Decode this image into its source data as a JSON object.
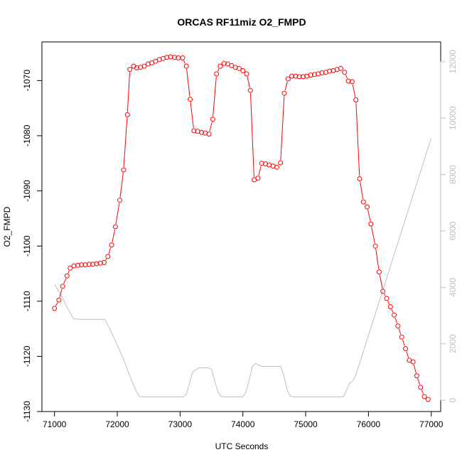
{
  "chart_data": {
    "type": "line",
    "title": "ORCAS RF11miz O2_FMPD",
    "xlabel": "UTC Seconds",
    "ylabel": "O2_FMPD",
    "ylabel_right": "",
    "xlim": [
      70800,
      77150
    ],
    "ylim": [
      -1130,
      -1063
    ],
    "ylim_right": [
      -400,
      12700
    ],
    "x_ticks": [
      71000,
      72000,
      73000,
      74000,
      75000,
      76000,
      77000
    ],
    "y_ticks": [
      -1130,
      -1120,
      -1110,
      -1100,
      -1090,
      -1080,
      -1070
    ],
    "y_ticks_right": [
      0,
      2000,
      4000,
      6000,
      8000,
      10000,
      12000
    ],
    "colors": {
      "primary": "#ff0000",
      "secondary": "#bfbfbf",
      "axes": "#000000"
    },
    "series": [
      {
        "axis": "left",
        "style": "points-line",
        "x": [
          71000,
          71070,
          71130,
          71200,
          71250,
          71310,
          71370,
          71430,
          71490,
          71550,
          71610,
          71670,
          71730,
          71790,
          71850,
          71910,
          71970,
          72040,
          72100,
          72160,
          72200,
          72260,
          72310,
          72370,
          72430,
          72490,
          72550,
          72610,
          72670,
          72730,
          72790,
          72850,
          72910,
          72970,
          73040,
          73100,
          73160,
          73220,
          73280,
          73340,
          73400,
          73460,
          73520,
          73580,
          73640,
          73700,
          73760,
          73820,
          73880,
          73940,
          74000,
          74060,
          74120,
          74180,
          74240,
          74300,
          74360,
          74420,
          74480,
          74540,
          74600,
          74660,
          74720,
          74780,
          74840,
          74900,
          74960,
          75020,
          75080,
          75140,
          75200,
          75260,
          75320,
          75380,
          75440,
          75500,
          75560,
          75620,
          75680,
          75740,
          75800,
          75860,
          75920,
          75980,
          76040,
          76110,
          76170,
          76230,
          76290,
          76350,
          76410,
          76470,
          76530,
          76590,
          76650,
          76710,
          76770,
          76830,
          76890,
          76950
        ],
        "y": [
          -1111.3,
          -1109.8,
          -1107.3,
          -1105.4,
          -1104.0,
          -1103.6,
          -1103.5,
          -1103.4,
          -1103.4,
          -1103.3,
          -1103.3,
          -1103.2,
          -1103.1,
          -1103.0,
          -1101.9,
          -1099.8,
          -1096.5,
          -1091.7,
          -1086.2,
          -1076.2,
          -1068.0,
          -1067.4,
          -1067.7,
          -1067.6,
          -1067.4,
          -1067.0,
          -1066.8,
          -1066.5,
          -1066.2,
          -1066.0,
          -1065.8,
          -1065.7,
          -1065.8,
          -1065.9,
          -1065.9,
          -1067.4,
          -1073.4,
          -1079.1,
          -1079.2,
          -1079.4,
          -1079.5,
          -1079.7,
          -1077.0,
          -1068.8,
          -1067.4,
          -1066.9,
          -1067.0,
          -1067.3,
          -1067.6,
          -1067.8,
          -1068.2,
          -1068.8,
          -1071.8,
          -1088.0,
          -1087.7,
          -1085.0,
          -1085.1,
          -1085.3,
          -1085.5,
          -1085.7,
          -1084.9,
          -1072.3,
          -1069.7,
          -1069.2,
          -1069.2,
          -1069.3,
          -1069.3,
          -1069.2,
          -1069.0,
          -1068.9,
          -1068.8,
          -1068.6,
          -1068.5,
          -1068.3,
          -1068.2,
          -1068.0,
          -1067.8,
          -1068.5,
          -1070.1,
          -1070.2,
          -1073.5,
          -1087.8,
          -1092.0,
          -1092.9,
          -1096.0,
          -1100.0,
          -1104.7,
          -1108.2,
          -1109.5,
          -1111.0,
          -1112.5,
          -1114.5,
          -1116.5,
          -1118.6,
          -1120.7,
          -1121.0,
          -1123.5,
          -1125.6,
          -1127.3,
          -1127.8
        ]
      },
      {
        "axis": "right",
        "style": "line",
        "x": [
          71000,
          71100,
          71200,
          71300,
          71400,
          71500,
          71600,
          71700,
          71800,
          71900,
          72000,
          72100,
          72200,
          72300,
          72350,
          72400,
          72600,
          72800,
          73000,
          73050,
          73100,
          73150,
          73200,
          73300,
          73400,
          73450,
          73500,
          73550,
          73600,
          73650,
          73700,
          73800,
          73900,
          74000,
          74050,
          74100,
          74150,
          74200,
          74300,
          74400,
          74500,
          74600,
          74650,
          74700,
          74750,
          74800,
          75000,
          75200,
          75400,
          75600,
          75700,
          75750,
          75800,
          76000,
          76200,
          76400,
          76600,
          76800,
          77000
        ],
        "y": [
          4100,
          3750,
          3300,
          2900,
          2870,
          2870,
          2870,
          2870,
          2870,
          2450,
          1950,
          1450,
          850,
          330,
          140,
          120,
          120,
          120,
          120,
          120,
          200,
          600,
          1000,
          1150,
          1150,
          1150,
          1100,
          700,
          300,
          150,
          120,
          120,
          120,
          120,
          300,
          700,
          1200,
          1300,
          1200,
          1200,
          1200,
          1200,
          900,
          400,
          150,
          120,
          120,
          120,
          120,
          120,
          600,
          680,
          900,
          2300,
          3700,
          5100,
          6500,
          7900,
          9300
        ]
      }
    ]
  }
}
